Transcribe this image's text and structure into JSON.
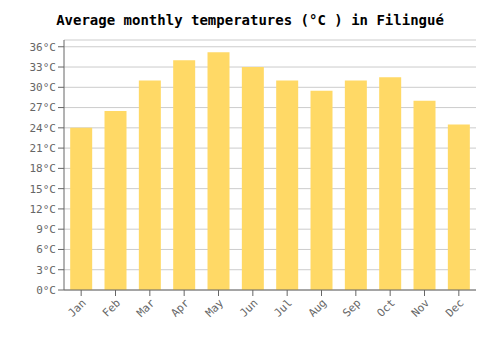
{
  "chart_data": {
    "type": "bar",
    "title": "Average monthly temperatures (°C ) in Filingué",
    "categories": [
      "Jan",
      "Feb",
      "Mar",
      "Apr",
      "May",
      "Jun",
      "Jul",
      "Aug",
      "Sep",
      "Oct",
      "Nov",
      "Dec"
    ],
    "values": [
      24.0,
      26.5,
      31.0,
      34.0,
      35.2,
      33.0,
      31.0,
      29.5,
      31.0,
      31.5,
      28.0,
      24.5
    ],
    "color": "#FFD966",
    "ylim": [
      0,
      37
    ],
    "yticks": [
      {
        "value": 0,
        "label": "0°C"
      },
      {
        "value": 3,
        "label": "3°C"
      },
      {
        "value": 6,
        "label": "6°C"
      },
      {
        "value": 9,
        "label": "9°C"
      },
      {
        "value": 12,
        "label": "12°C"
      },
      {
        "value": 15,
        "label": "15°C"
      },
      {
        "value": 18,
        "label": "18°C"
      },
      {
        "value": 21,
        "label": "21°C"
      },
      {
        "value": 24,
        "label": "24°C"
      },
      {
        "value": 27,
        "label": "27°C"
      },
      {
        "value": 30,
        "label": "30°C"
      },
      {
        "value": 33,
        "label": "33°C"
      },
      {
        "value": 36,
        "label": "36°C"
      }
    ],
    "grid": true
  }
}
